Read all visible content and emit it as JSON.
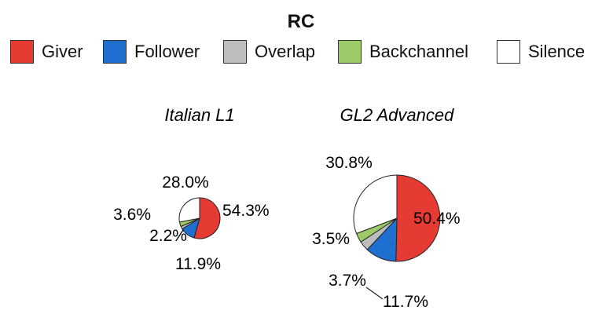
{
  "chart_data": {
    "type": "pie",
    "title": "RC",
    "legend": {
      "placement": "top",
      "items": [
        {
          "label": "Giver",
          "color": "#e63b33"
        },
        {
          "label": "Follower",
          "color": "#1f6fd1"
        },
        {
          "label": "Overlap",
          "color": "#bdbdbd"
        },
        {
          "label": "Backchannel",
          "color": "#9ccb67"
        },
        {
          "label": "Silence",
          "color": "#ffffff"
        }
      ]
    },
    "pies": [
      {
        "title": "Italian L1",
        "slices": [
          {
            "label": "Giver",
            "value": 54.3,
            "text": "54.3%"
          },
          {
            "label": "Follower",
            "value": 11.9,
            "text": "11.9%"
          },
          {
            "label": "Overlap",
            "value": 2.2,
            "text": "2.2%"
          },
          {
            "label": "Backchannel",
            "value": 3.6,
            "text": "3.6%"
          },
          {
            "label": "Silence",
            "value": 28.0,
            "text": "28.0%"
          }
        ]
      },
      {
        "title": "GL2 Advanced",
        "slices": [
          {
            "label": "Giver",
            "value": 50.4,
            "text": "50.4%"
          },
          {
            "label": "Follower",
            "value": 11.7,
            "text": "11.7%"
          },
          {
            "label": "Overlap",
            "value": 3.7,
            "text": "3.7%"
          },
          {
            "label": "Backchannel",
            "value": 3.5,
            "text": "3.5%"
          },
          {
            "label": "Silence",
            "value": 30.8,
            "text": "30.8%"
          }
        ]
      }
    ]
  }
}
